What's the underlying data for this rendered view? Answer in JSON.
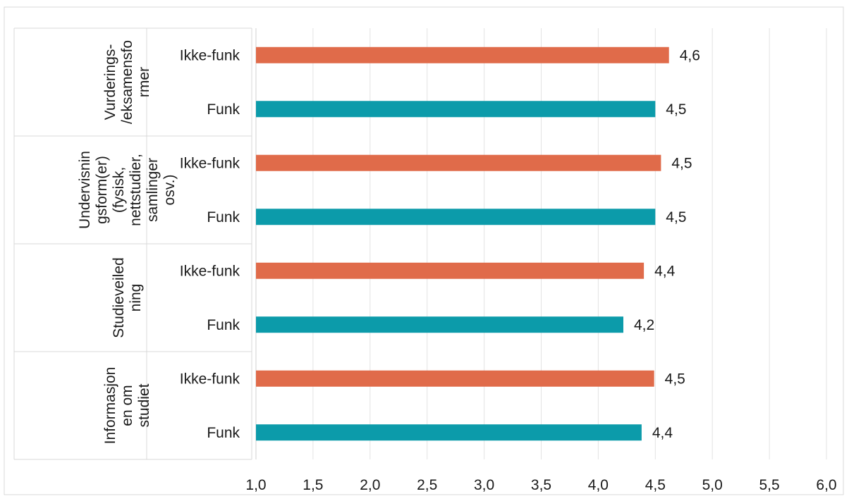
{
  "chart_data": {
    "type": "bar",
    "orientation": "horizontal",
    "groups": [
      {
        "label": "Vurderings-/eksamensformer",
        "label_lines": [
          "Vurderings-",
          "/eksamensfo",
          "rmer"
        ],
        "bars": [
          {
            "label": "Ikke-funk",
            "value": 4.62,
            "value_label": "4,6"
          },
          {
            "label": "Funk",
            "value": 4.5,
            "value_label": "4,5"
          }
        ]
      },
      {
        "label": "Undervisningsform(er) (fysisk, nettstudier, samlinger osv.)",
        "label_lines": [
          "Undervisnin",
          "gsform(er)",
          "(fysisk,",
          "nettstudier,",
          "samlinger",
          "osv.)"
        ],
        "bars": [
          {
            "label": "Ikke-funk",
            "value": 4.55,
            "value_label": "4,5"
          },
          {
            "label": "Funk",
            "value": 4.5,
            "value_label": "4,5"
          }
        ]
      },
      {
        "label": "Studieveiledning",
        "label_lines": [
          "Studieveiled",
          "ning"
        ],
        "bars": [
          {
            "label": "Ikke-funk",
            "value": 4.4,
            "value_label": "4,4"
          },
          {
            "label": "Funk",
            "value": 4.22,
            "value_label": "4,2"
          }
        ]
      },
      {
        "label": "Informasjonen om studiet",
        "label_lines": [
          "Informasjon",
          "en om",
          "studiet"
        ],
        "bars": [
          {
            "label": "Ikke-funk",
            "value": 4.49,
            "value_label": "4,5"
          },
          {
            "label": "Funk",
            "value": 4.38,
            "value_label": "4,4"
          }
        ]
      }
    ],
    "xlim": [
      1.0,
      6.0
    ],
    "xticks": [
      1.0,
      1.5,
      2.0,
      2.5,
      3.0,
      3.5,
      4.0,
      4.5,
      5.0,
      5.5,
      6.0
    ],
    "xtick_labels": [
      "1,0",
      "1,5",
      "2,0",
      "2,5",
      "3,0",
      "3,5",
      "4,0",
      "4,5",
      "5,0",
      "5,5",
      "6,0"
    ],
    "colors": {
      "Ikke-funk": "#E06B4A",
      "Funk": "#0C9BAA"
    },
    "grid": "vertical",
    "legend": "none"
  }
}
